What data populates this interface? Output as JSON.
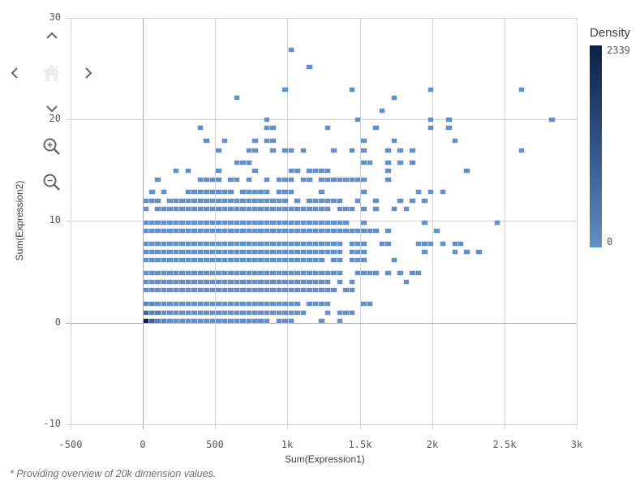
{
  "chart_data": {
    "type": "heatmap",
    "subtype": "density-scatter",
    "title": "",
    "xlabel": "Sum(Expression1)",
    "ylabel": "Sum(Expression2)",
    "xlim": [
      -500,
      3000
    ],
    "ylim": [
      -10,
      30
    ],
    "x_ticks": [
      "-500",
      "0",
      "500",
      "1k",
      "1.5k",
      "2k",
      "2.5k",
      "3k"
    ],
    "y_ticks": [
      "30",
      "20",
      "10",
      "0",
      "-10"
    ],
    "grid": true,
    "legend": {
      "title": "Density",
      "max": "2339",
      "min": "0",
      "position": "right",
      "color_low": "#6590c6",
      "color_high": "#0b1f45"
    },
    "bin_width_x": 42,
    "rows_note": "each row: y value (approx.) and runs of [startColumn, count]; column c covers x ≈ c*42 to (c+1)*42",
    "rows": [
      {
        "y": 26.9,
        "runs": [
          [
            24,
            1
          ]
        ]
      },
      {
        "y": 25.2,
        "runs": [
          [
            27,
            1
          ]
        ]
      },
      {
        "y": 23.0,
        "runs": [
          [
            23,
            1
          ],
          [
            34,
            1
          ],
          [
            47,
            1
          ],
          [
            62,
            1
          ]
        ]
      },
      {
        "y": 22.2,
        "runs": [
          [
            15,
            1
          ],
          [
            41,
            1
          ]
        ]
      },
      {
        "y": 20.9,
        "runs": [
          [
            39,
            1
          ]
        ]
      },
      {
        "y": 20.0,
        "runs": [
          [
            20,
            1
          ],
          [
            35,
            1
          ],
          [
            47,
            1
          ],
          [
            50,
            1
          ],
          [
            67,
            1
          ]
        ]
      },
      {
        "y": 19.2,
        "runs": [
          [
            9,
            1
          ],
          [
            20,
            2
          ],
          [
            30,
            1
          ],
          [
            38,
            1
          ],
          [
            47,
            1
          ],
          [
            50,
            1
          ]
        ]
      },
      {
        "y": 17.9,
        "runs": [
          [
            10,
            1
          ],
          [
            13,
            1
          ],
          [
            18,
            1
          ],
          [
            20,
            2
          ],
          [
            36,
            1
          ],
          [
            41,
            1
          ],
          [
            51,
            1
          ]
        ]
      },
      {
        "y": 17.0,
        "runs": [
          [
            12,
            1
          ],
          [
            17,
            2
          ],
          [
            21,
            1
          ],
          [
            23,
            2
          ],
          [
            26,
            1
          ],
          [
            31,
            1
          ],
          [
            34,
            1
          ],
          [
            36,
            1
          ],
          [
            40,
            1
          ],
          [
            42,
            1
          ],
          [
            44,
            1
          ],
          [
            62,
            1
          ]
        ]
      },
      {
        "y": 15.8,
        "runs": [
          [
            15,
            3
          ],
          [
            36,
            2
          ],
          [
            40,
            1
          ],
          [
            42,
            1
          ],
          [
            44,
            1
          ]
        ]
      },
      {
        "y": 15.0,
        "runs": [
          [
            5,
            1
          ],
          [
            7,
            1
          ],
          [
            12,
            1
          ],
          [
            18,
            1
          ],
          [
            24,
            2
          ],
          [
            27,
            4
          ],
          [
            40,
            1
          ],
          [
            53,
            1
          ]
        ]
      },
      {
        "y": 14.1,
        "runs": [
          [
            2,
            1
          ],
          [
            9,
            4
          ],
          [
            14,
            2
          ],
          [
            17,
            1
          ],
          [
            20,
            1
          ],
          [
            22,
            3
          ],
          [
            26,
            2
          ],
          [
            29,
            2
          ],
          [
            31,
            6
          ],
          [
            40,
            1
          ]
        ]
      },
      {
        "y": 12.9,
        "runs": [
          [
            1,
            1
          ],
          [
            3,
            1
          ],
          [
            7,
            8
          ],
          [
            16,
            5
          ],
          [
            22,
            3
          ],
          [
            29,
            1
          ],
          [
            36,
            1
          ],
          [
            45,
            1
          ],
          [
            47,
            1
          ],
          [
            49,
            1
          ]
        ]
      },
      {
        "y": 12.0,
        "runs": [
          [
            0,
            3
          ],
          [
            4,
            20
          ],
          [
            25,
            1
          ],
          [
            27,
            6
          ],
          [
            35,
            1
          ],
          [
            38,
            1
          ],
          [
            42,
            1
          ],
          [
            44,
            1
          ],
          [
            46,
            1
          ]
        ]
      },
      {
        "y": 11.2,
        "runs": [
          [
            0,
            1
          ],
          [
            2,
            29
          ],
          [
            32,
            3
          ],
          [
            36,
            1
          ],
          [
            38,
            1
          ],
          [
            41,
            1
          ],
          [
            43,
            1
          ]
        ]
      },
      {
        "y": 9.9,
        "runs": [
          [
            0,
            34
          ],
          [
            36,
            1
          ],
          [
            46,
            1
          ],
          [
            58,
            1
          ]
        ]
      },
      {
        "y": 9.1,
        "runs": [
          [
            0,
            33
          ],
          [
            33,
            6
          ],
          [
            40,
            1
          ],
          [
            48,
            1
          ]
        ]
      },
      {
        "y": 7.8,
        "runs": [
          [
            0,
            33
          ],
          [
            34,
            3
          ],
          [
            39,
            2
          ],
          [
            45,
            3
          ],
          [
            51,
            2
          ],
          [
            49,
            1
          ]
        ]
      },
      {
        "y": 7.0,
        "runs": [
          [
            0,
            33
          ],
          [
            34,
            3
          ],
          [
            46,
            1
          ],
          [
            51,
            1
          ],
          [
            53,
            1
          ],
          [
            55,
            1
          ]
        ]
      },
      {
        "y": 6.2,
        "runs": [
          [
            0,
            30
          ],
          [
            31,
            2
          ],
          [
            34,
            3
          ],
          [
            41,
            1
          ]
        ]
      },
      {
        "y": 4.9,
        "runs": [
          [
            0,
            33
          ],
          [
            35,
            4
          ],
          [
            40,
            1
          ],
          [
            42,
            1
          ],
          [
            44,
            2
          ]
        ]
      },
      {
        "y": 4.0,
        "runs": [
          [
            0,
            31
          ],
          [
            32,
            1
          ],
          [
            34,
            1
          ],
          [
            43,
            1
          ]
        ]
      },
      {
        "y": 3.2,
        "runs": [
          [
            0,
            32
          ],
          [
            33,
            2
          ]
        ]
      },
      {
        "y": 1.9,
        "runs": [
          [
            0,
            26
          ],
          [
            27,
            4
          ],
          [
            36,
            2
          ]
        ]
      },
      {
        "y": 1.0,
        "runs": [
          [
            0,
            27
          ],
          [
            30,
            1
          ],
          [
            32,
            3
          ]
        ]
      },
      {
        "y": 0.2,
        "runs": [
          [
            0,
            21
          ],
          [
            22,
            3
          ],
          [
            29,
            1
          ],
          [
            32,
            1
          ]
        ]
      }
    ],
    "densest_cell": {
      "x": 0,
      "y": 0,
      "density": 2339
    }
  },
  "axes": {
    "x_title": "Sum(Expression1)",
    "y_title": "Sum(Expression2)",
    "x_ticks": [
      {
        "label": "-500",
        "px": 87
      },
      {
        "label": "0",
        "px": 176
      },
      {
        "label": "500",
        "px": 265
      },
      {
        "label": "1k",
        "px": 354
      },
      {
        "label": "1.5k",
        "px": 444
      },
      {
        "label": "2k",
        "px": 533
      },
      {
        "label": "2.5k",
        "px": 622
      },
      {
        "label": "3k",
        "px": 711
      }
    ],
    "y_ticks": [
      {
        "label": "30",
        "px": 22
      },
      {
        "label": "20",
        "px": 147
      },
      {
        "label": "10",
        "px": 272
      },
      {
        "label": "0",
        "px": 398
      },
      {
        "label": "-10",
        "px": 523
      }
    ]
  },
  "legend": {
    "title": "Density",
    "max_label": "2339",
    "min_label": "0"
  },
  "navigation": {
    "up": "chevron-up",
    "down": "chevron-down",
    "left": "chevron-left",
    "right": "chevron-right",
    "home": "home",
    "zoom_in": "zoom-in",
    "zoom_out": "zoom-out",
    "glyph_up": "⌃",
    "glyph_down": "⌄",
    "glyph_left": "‹",
    "glyph_right": "›"
  },
  "footnote": "* Providing overview of 20k dimension values."
}
